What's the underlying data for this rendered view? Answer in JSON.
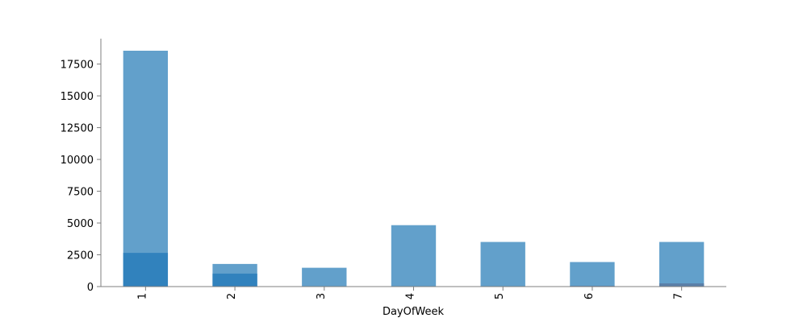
{
  "chart_data": {
    "type": "bar",
    "xlabel": "DayOfWeek",
    "ylabel": "",
    "ylim": [
      0,
      19500
    ],
    "yticks": [
      0,
      2500,
      5000,
      7500,
      10000,
      12500,
      15000,
      17500
    ],
    "ytick_labels": [
      "0",
      "2500",
      "5000",
      "7500",
      "10000",
      "12500",
      "15000",
      "17500"
    ],
    "categories": [
      "1",
      "2",
      "3",
      "4",
      "5",
      "6",
      "7"
    ],
    "grid": false,
    "series": [
      {
        "values": [
          18550,
          1780,
          1480,
          4830,
          3510,
          1930,
          3510
        ],
        "color": "#62a0cb"
      },
      {
        "values": [
          2650,
          1020,
          0,
          0,
          0,
          60,
          250
        ],
        "color": "#3182bd"
      }
    ],
    "highlight_color": "#5b7fa8",
    "axis_color": "#7f7f7f"
  }
}
